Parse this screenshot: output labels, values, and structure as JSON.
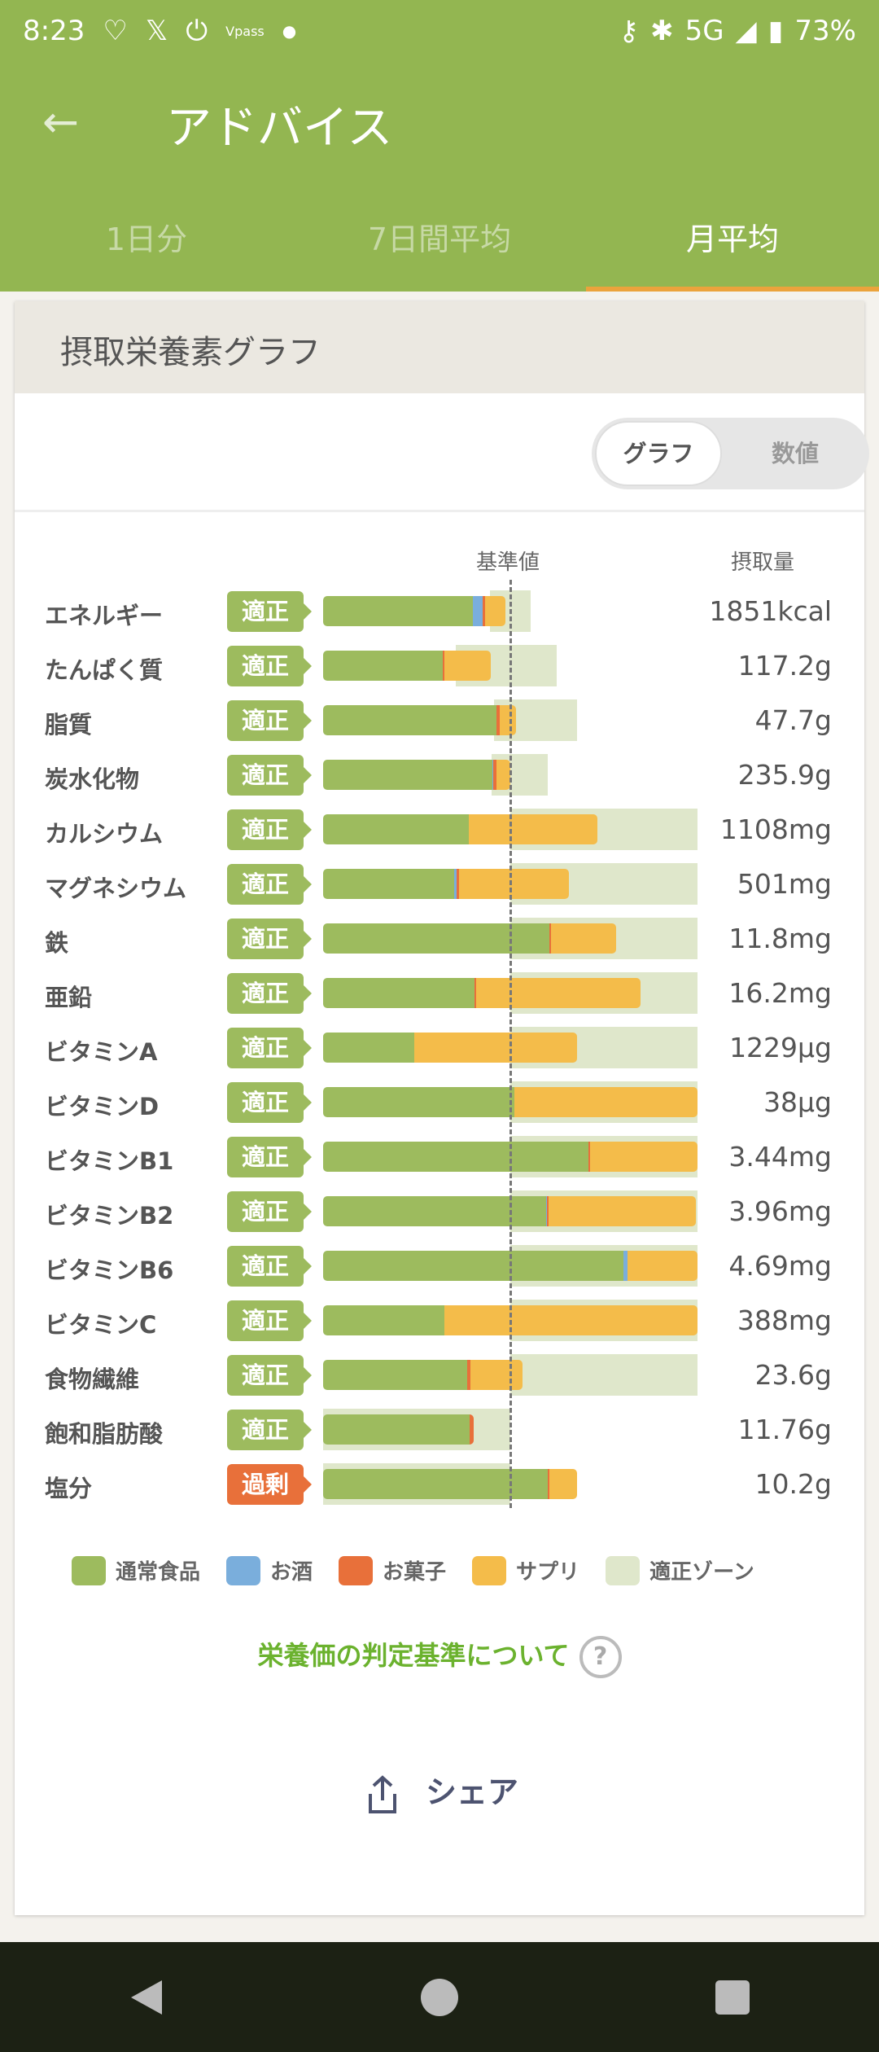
{
  "status_bar": {
    "time": "8:23",
    "vpass": "Vpass",
    "network": "5G",
    "battery": "73%"
  },
  "header": {
    "title": "アドバイス"
  },
  "tabs": [
    {
      "label": "1日分",
      "active": false
    },
    {
      "label": "7日間平均",
      "active": false
    },
    {
      "label": "月平均",
      "active": true
    }
  ],
  "card": {
    "title": "摂取栄養素グラフ",
    "toggle": {
      "graph": "グラフ",
      "numbers": "数値",
      "selected": "グラフ"
    }
  },
  "colors": {
    "normal_food": "#9dbb5e",
    "alcohol": "#7aaedc",
    "snacks": "#e8703a",
    "supplement": "#f4bc4a",
    "proper_zone": "#dfe7cb",
    "badge_ok": "#9dbb5e",
    "badge_over": "#e8703a"
  },
  "chart_data": {
    "type": "bar",
    "orientation": "horizontal-stacked",
    "reference_label": "基準値",
    "amount_header": "摂取量",
    "unit": "% of 基準値 (cumulative segment ends)",
    "xlim": [
      0,
      200
    ],
    "reference": 100,
    "rows": [
      {
        "name": "エネルギー",
        "status": "適正",
        "amount": "1851kcal",
        "normal": 80,
        "alcohol": 85.4,
        "snacks": 86.4,
        "supplement": 97.2,
        "zone": [
          89,
          110.7
        ]
      },
      {
        "name": "たんぱく質",
        "status": "適正",
        "amount": "117.2g",
        "normal": 63.9,
        "alcohol": 63.9,
        "snacks": 64.6,
        "supplement": 89.4,
        "zone": [
          70.9,
          124.8
        ]
      },
      {
        "name": "脂質",
        "status": "適正",
        "amount": "47.7g",
        "normal": 92.6,
        "alcohol": 92.6,
        "snacks": 94.3,
        "supplement": 103,
        "zone": [
          91.2,
          135.8
        ]
      },
      {
        "name": "炭水化物",
        "status": "適正",
        "amount": "235.9g",
        "normal": 90.4,
        "alcohol": 91,
        "snacks": 92.6,
        "supplement": 100.1,
        "zone": [
          90,
          119.9
        ]
      },
      {
        "name": "カルシウム",
        "status": "適正",
        "amount": "1108mg",
        "normal": 77.8,
        "alcohol": 77.8,
        "snacks": 77.8,
        "supplement": 146.5,
        "zone": [
          100,
          200
        ]
      },
      {
        "name": "マグネシウム",
        "status": "適正",
        "amount": "501mg",
        "normal": 69.9,
        "alcohol": 71.4,
        "snacks": 72.5,
        "supplement": 131.3,
        "zone": [
          100,
          200
        ]
      },
      {
        "name": "鉄",
        "status": "適正",
        "amount": "11.8mg",
        "normal": 120.9,
        "alcohol": 120.9,
        "snacks": 121.7,
        "supplement": 156.4,
        "zone": [
          100,
          200
        ]
      },
      {
        "name": "亜鉛",
        "status": "適正",
        "amount": "16.2mg",
        "normal": 80.9,
        "alcohol": 80.9,
        "snacks": 81.7,
        "supplement": 169.4,
        "zone": [
          100,
          200
        ]
      },
      {
        "name": "ビタミンA",
        "status": "適正",
        "amount": "1229μg",
        "normal": 48.7,
        "alcohol": 48.7,
        "snacks": 48.7,
        "supplement": 135.7,
        "zone": [
          100,
          200
        ]
      },
      {
        "name": "ビタミンD",
        "status": "適正",
        "amount": "38μg",
        "normal": 102.3,
        "alcohol": 102.3,
        "snacks": 102.3,
        "supplement": 200,
        "zone": [
          100,
          200
        ]
      },
      {
        "name": "ビタミンB1",
        "status": "適正",
        "amount": "3.44mg",
        "normal": 141.9,
        "alcohol": 141.9,
        "snacks": 142.6,
        "supplement": 200,
        "zone": [
          100,
          200
        ]
      },
      {
        "name": "ビタミンB2",
        "status": "適正",
        "amount": "3.96mg",
        "normal": 119.1,
        "alcohol": 119.7,
        "snacks": 120.3,
        "supplement": 199,
        "zone": [
          100,
          200
        ]
      },
      {
        "name": "ビタミンB6",
        "status": "適正",
        "amount": "4.69mg",
        "normal": 160.3,
        "alcohol": 162.5,
        "snacks": 162.5,
        "supplement": 200,
        "zone": [
          100,
          200
        ]
      },
      {
        "name": "ビタミンC",
        "status": "適正",
        "amount": "388mg",
        "normal": 64.8,
        "alcohol": 64.8,
        "snacks": 64.8,
        "supplement": 200,
        "zone": [
          100,
          200
        ]
      },
      {
        "name": "食物繊維",
        "status": "適正",
        "amount": "23.6g",
        "normal": 77.1,
        "alcohol": 77.1,
        "snacks": 78.7,
        "supplement": 106.4,
        "zone": [
          100,
          200
        ]
      },
      {
        "name": "飽和脂肪酸",
        "status": "適正",
        "amount": "11.76g",
        "normal": 78.1,
        "alcohol": 78.1,
        "snacks": 80.3,
        "supplement": 80.3,
        "zone": [
          0,
          100
        ]
      },
      {
        "name": "塩分",
        "status": "過剰",
        "amount": "10.2g",
        "normal": 120.1,
        "alcohol": 120.1,
        "snacks": 120.9,
        "supplement": 135.7,
        "zone": [
          0,
          100
        ]
      }
    ],
    "legend": [
      "通常食品",
      "お酒",
      "お菓子",
      "サプリ",
      "適正ゾーン"
    ]
  },
  "link": {
    "label": "栄養価の判定基準について",
    "icon": "question-circle-icon"
  },
  "share": {
    "label": "シェア",
    "icon": "share-icon"
  }
}
